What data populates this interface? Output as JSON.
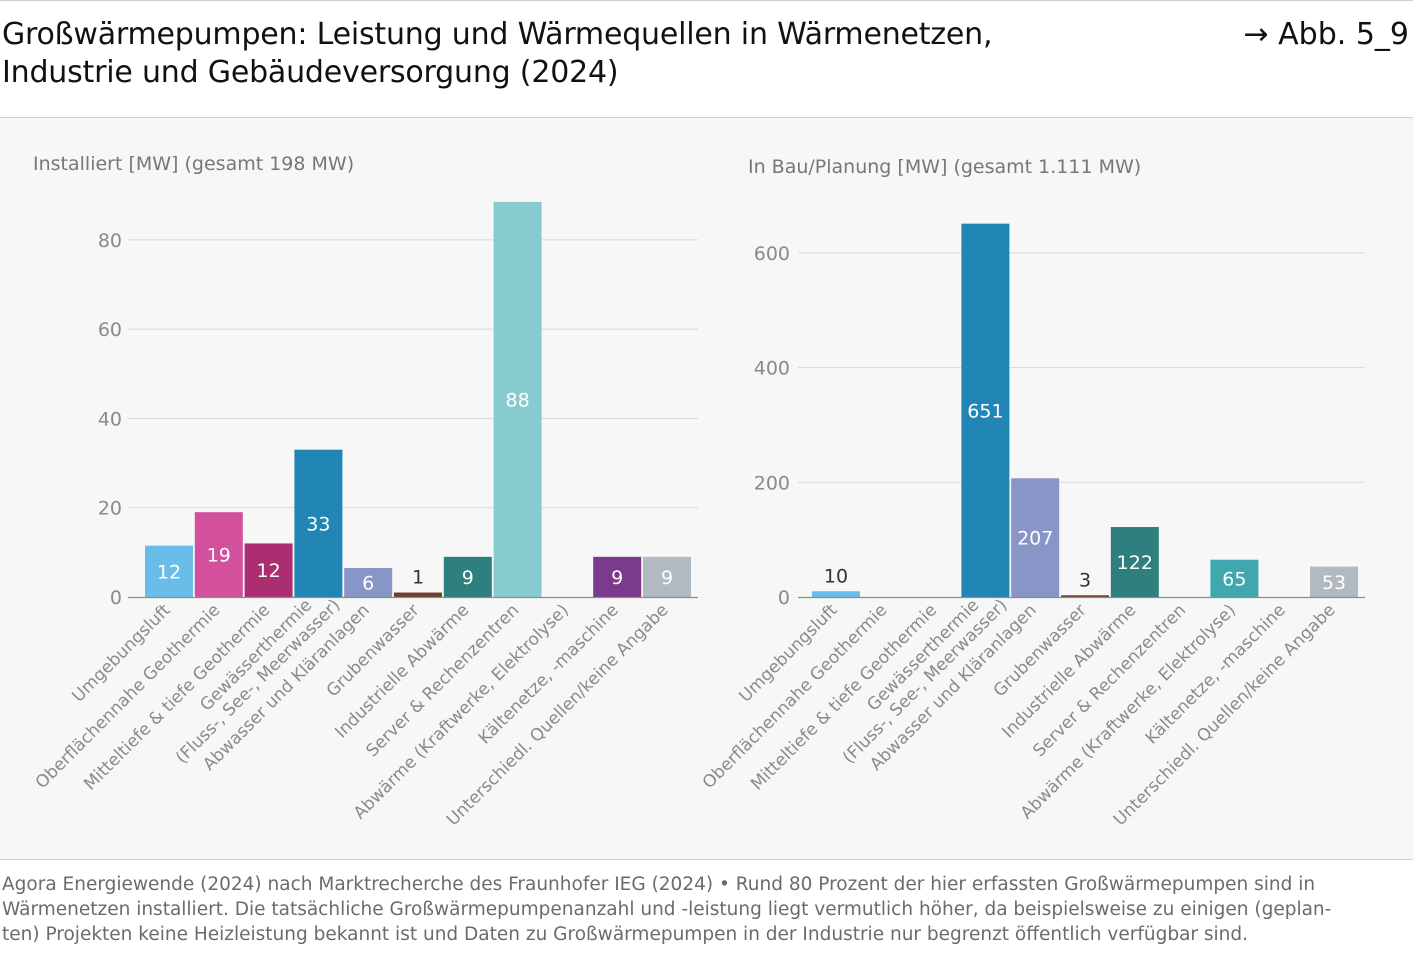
{
  "header": {
    "title_line1": "Großwärmepumpen: Leistung und Wärmequellen in Wärmenetzen,",
    "title_line2": "Industrie und Gebäudeversorgung (2024)",
    "figure_ref": "→ Abb. 5_9"
  },
  "source": {
    "line1": "Agora Energiewende (2024) nach Marktrecherche des Fraunhofer IEG (2024) • Rund 80 Prozent der hier erfassten Großwärmepumpen sind in",
    "line2": "Wärmenetzen installiert. Die tatsächliche Großwärmepumpenanzahl und -leistung liegt vermutlich höher, da beispielsweise zu einigen (geplan-",
    "line3": "ten) Projekten keine Heizleistung bekannt ist und Daten zu Großwärmepumpen in der Industrie nur begrenzt öffentlich verfügbar sind."
  },
  "chart_data": [
    {
      "type": "bar",
      "title": "Installiert [MW] (gesamt 198 MW)",
      "ylim": [
        0,
        90
      ],
      "yticks": [
        0,
        20,
        40,
        60,
        80
      ],
      "grid": true,
      "categories": [
        "Umgebungsluft",
        "Oberflächennahe Geothermie",
        "Mitteltiefe & tiefe Geothermie",
        "Gewässerthermie\n(Fluss-, See-, Meerwasser)",
        "Abwasser und Kläranlagen",
        "Grubenwasser",
        "Industrielle Abwärme",
        "Server & Rechenzentren",
        "Abwärme (Kraftwerke, Elektrolyse)",
        "Kältenetze, -maschine",
        "Unterschiedl. Quellen/keine Angabe"
      ],
      "values": [
        11.5,
        19,
        12,
        33,
        6.5,
        1,
        9,
        88.5,
        0,
        9,
        9
      ],
      "labels": [
        "12",
        "19",
        "12",
        "33",
        "6",
        "1",
        "9",
        "88",
        "",
        "9",
        "9"
      ],
      "colors": [
        "#6bbde9",
        "#d3509c",
        "#ab2e70",
        "#2186b6",
        "#8895c6",
        "#6e3f30",
        "#2e7f7d",
        "#88cbcf",
        "#2e7f7d",
        "#7b3b8c",
        "#b1b9c1"
      ]
    },
    {
      "type": "bar",
      "title": "In Bau/Planung [MW] (gesamt 1.111 MW)",
      "ylim": [
        0,
        700
      ],
      "yticks": [
        0,
        200,
        400,
        600
      ],
      "grid": true,
      "categories": [
        "Umgebungsluft",
        "Oberflächennahe Geothermie",
        "Mitteltiefe & tiefe Geothermie",
        "Gewässerthermie\n(Fluss-, See-, Meerwasser)",
        "Abwasser und Kläranlagen",
        "Grubenwasser",
        "Industrielle Abwärme",
        "Server & Rechenzentren",
        "Abwärme (Kraftwerke, Elektrolyse)",
        "Kältenetze, -maschine",
        "Unterschiedl. Quellen/keine Angabe"
      ],
      "values": [
        10,
        0,
        0,
        651,
        207,
        3,
        122,
        0,
        65,
        0,
        53
      ],
      "labels": [
        "10",
        "",
        "",
        "651",
        "207",
        "3",
        "122",
        "",
        "65",
        "",
        "53"
      ],
      "colors": [
        "#6bbde9",
        "#d3509c",
        "#ab2e70",
        "#2186b6",
        "#8895c6",
        "#6e3f30",
        "#2e7f7d",
        "#88cbcf",
        "#3fa7ad",
        "#7b3b8c",
        "#b1b9c1"
      ]
    }
  ]
}
